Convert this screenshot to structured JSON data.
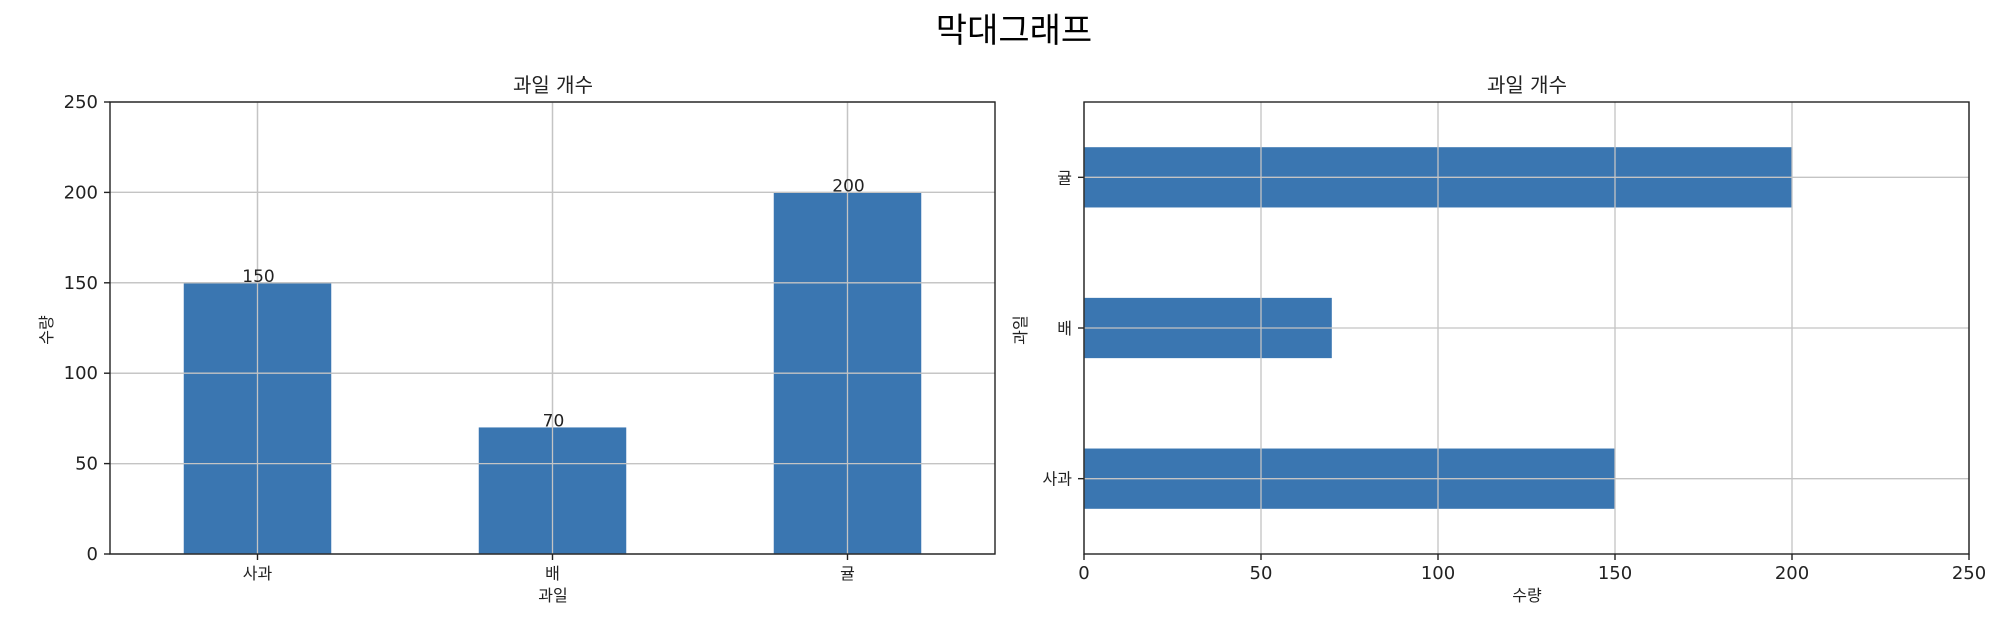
{
  "figure": {
    "title": "막대그래프"
  },
  "chart_data": [
    {
      "type": "bar",
      "orientation": "vertical",
      "title": "과일 개수",
      "xlabel": "과일",
      "ylabel": "수량",
      "categories": [
        "사과",
        "배",
        "귤"
      ],
      "values": [
        150,
        70,
        200
      ],
      "ylim": [
        0,
        250
      ],
      "yticks": [
        "0",
        "50",
        "100",
        "150",
        "200",
        "250"
      ],
      "data_labels": [
        "150",
        "70",
        "200"
      ],
      "grid": true,
      "color": "#3a76b1"
    },
    {
      "type": "bar",
      "orientation": "horizontal",
      "title": "과일 개수",
      "xlabel": "수량",
      "ylabel": "과일",
      "categories": [
        "사과",
        "배",
        "귤"
      ],
      "values": [
        150,
        70,
        200
      ],
      "xlim": [
        0,
        250
      ],
      "xticks": [
        "0",
        "50",
        "100",
        "150",
        "200",
        "250"
      ],
      "grid": true,
      "color": "#3a76b1"
    }
  ]
}
